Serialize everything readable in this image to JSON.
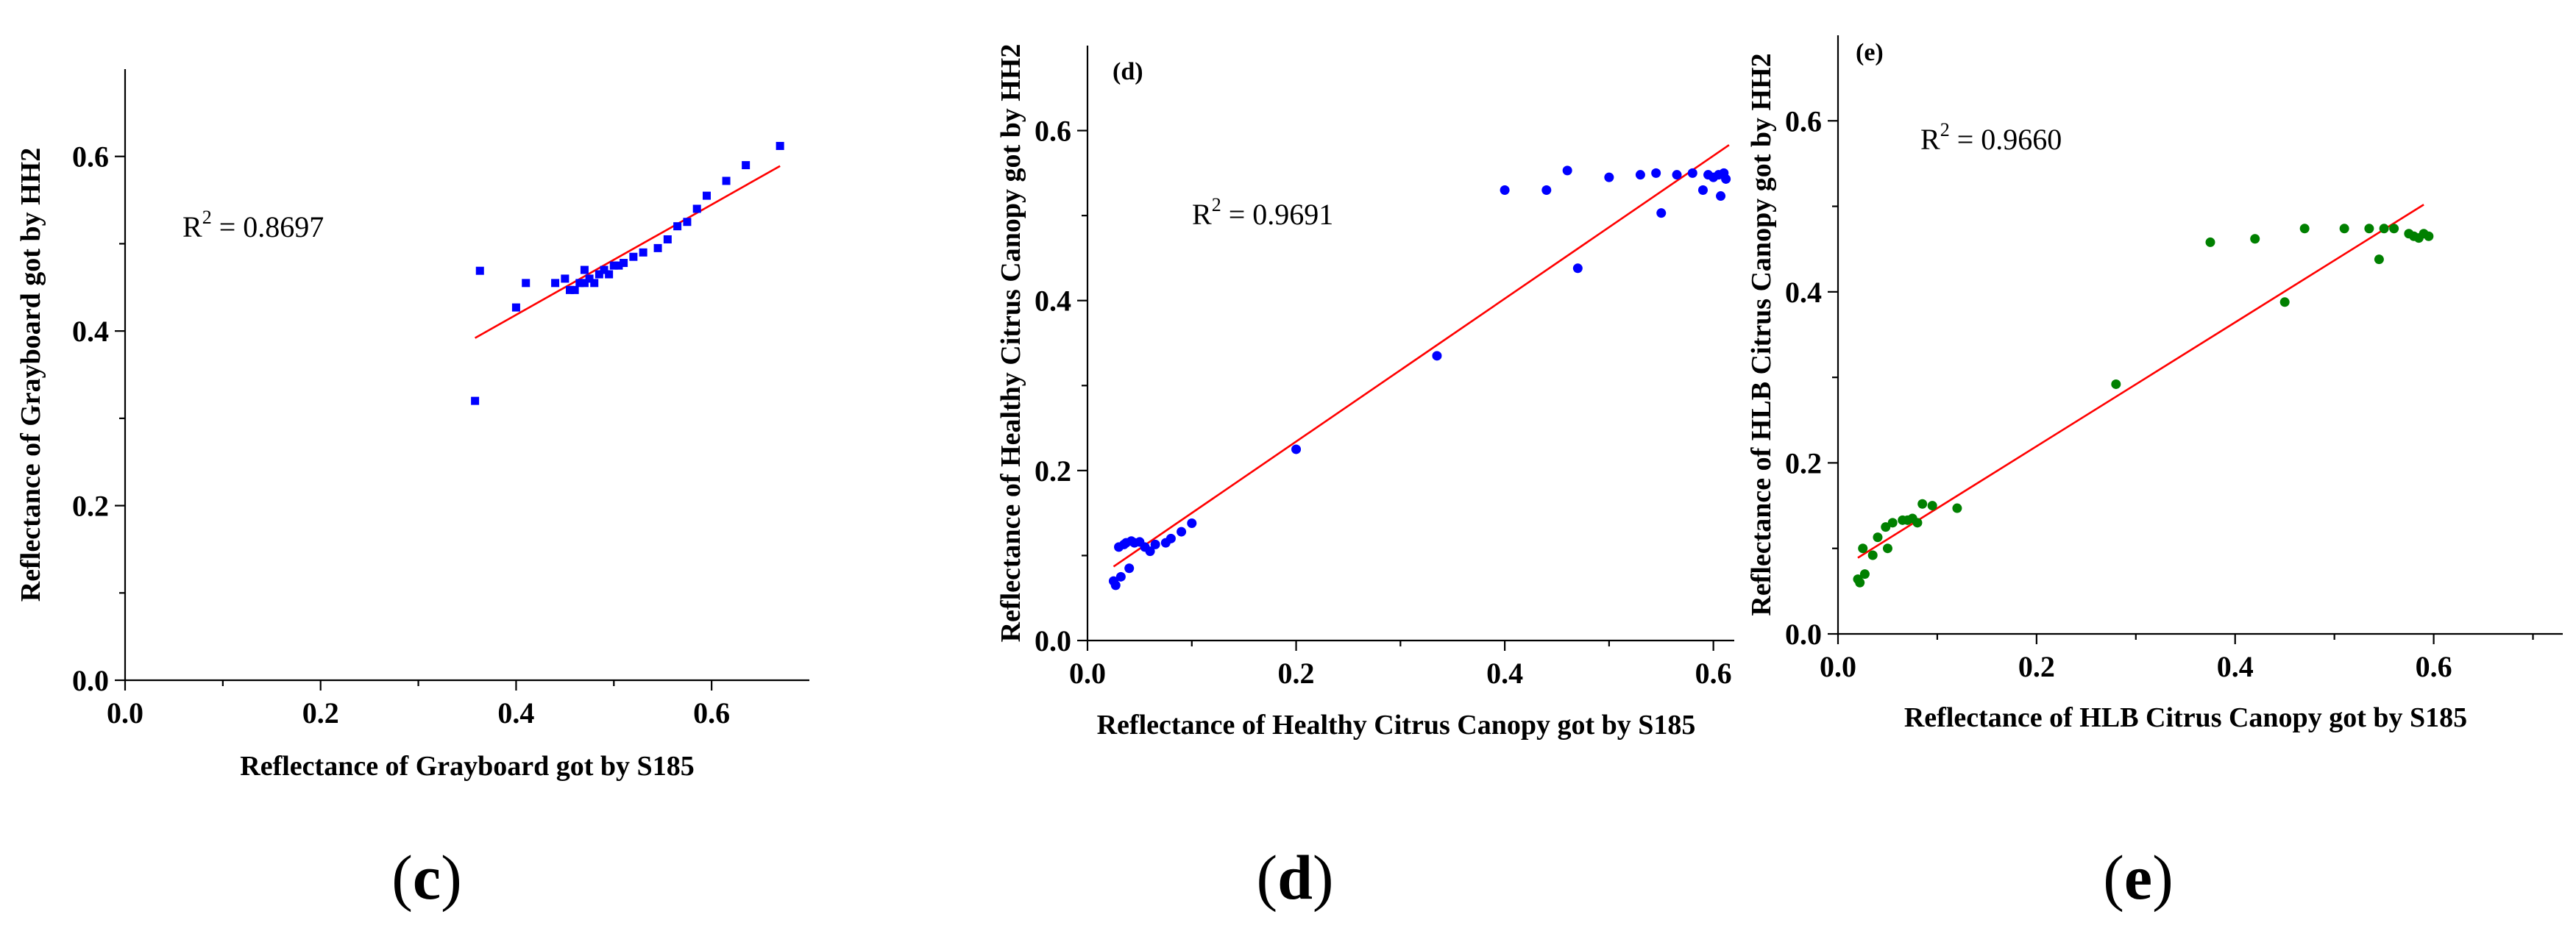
{
  "chart_data": [
    {
      "id": "c",
      "type": "scatter",
      "panel_label": "",
      "caption": "c",
      "title": "",
      "xlabel": "Reflectance of Grayboard got by S185",
      "ylabel": "Reflectance of Grayboard got by HH2",
      "xlim": [
        0.0,
        0.7
      ],
      "ylim": [
        0.0,
        0.7
      ],
      "xticks": [
        0.0,
        0.2,
        0.4,
        0.6
      ],
      "yticks": [
        0.0,
        0.2,
        0.4,
        0.6
      ],
      "xtick_labels": [
        "0.0",
        "0.2",
        "0.4",
        "0.6"
      ],
      "ytick_labels": [
        "0.0",
        "0.2",
        "0.4",
        "0.6"
      ],
      "r2_text": "R",
      "r2_sup": "2",
      "r2_value": " = 0.8697",
      "marker": "square",
      "color": "#0000ff",
      "fit_color": "#ff0000",
      "fit_line": {
        "x": [
          0.358,
          0.67
        ],
        "y": [
          0.392,
          0.589
        ]
      },
      "points": {
        "x": [
          0.358,
          0.363,
          0.4,
          0.41,
          0.44,
          0.45,
          0.455,
          0.46,
          0.465,
          0.47,
          0.47,
          0.475,
          0.48,
          0.485,
          0.49,
          0.495,
          0.5,
          0.505,
          0.51,
          0.52,
          0.53,
          0.545,
          0.555,
          0.565,
          0.575,
          0.585,
          0.595,
          0.615,
          0.635,
          0.67
        ],
        "y": [
          0.32,
          0.469,
          0.427,
          0.455,
          0.455,
          0.46,
          0.447,
          0.447,
          0.455,
          0.47,
          0.455,
          0.46,
          0.455,
          0.465,
          0.47,
          0.465,
          0.475,
          0.475,
          0.478,
          0.485,
          0.49,
          0.495,
          0.505,
          0.52,
          0.525,
          0.54,
          0.555,
          0.572,
          0.59,
          0.612
        ]
      }
    },
    {
      "id": "d",
      "type": "scatter",
      "panel_label": "(d)",
      "caption": "d",
      "title": "",
      "xlabel": "Reflectance of Healthy Citrus Canopy got by S185",
      "ylabel": "Reflectance of Healthy Citrus Canopy got by HH2",
      "xlim": [
        0.0,
        0.62
      ],
      "ylim": [
        0.0,
        0.7
      ],
      "xticks": [
        0.0,
        0.2,
        0.4,
        0.6
      ],
      "yticks": [
        0.0,
        0.2,
        0.4,
        0.6
      ],
      "xtick_labels": [
        "0.0",
        "0.2",
        "0.4",
        "0.6"
      ],
      "ytick_labels": [
        "0.0",
        "0.2",
        "0.4",
        "0.6"
      ],
      "r2_text": "R",
      "r2_sup": "2",
      "r2_value": " = 0.9691",
      "marker": "circle",
      "color": "#0000ff",
      "fit_color": "#ff0000",
      "fit_line": {
        "x": [
          0.025,
          0.615
        ],
        "y": [
          0.087,
          0.583
        ]
      },
      "points": {
        "x": [
          0.025,
          0.027,
          0.03,
          0.032,
          0.035,
          0.037,
          0.04,
          0.042,
          0.045,
          0.05,
          0.055,
          0.06,
          0.065,
          0.075,
          0.08,
          0.09,
          0.1,
          0.2,
          0.335,
          0.4,
          0.44,
          0.46,
          0.47,
          0.5,
          0.53,
          0.545,
          0.55,
          0.565,
          0.58,
          0.59,
          0.595,
          0.6,
          0.605,
          0.607,
          0.61,
          0.612
        ],
        "y": [
          0.07,
          0.065,
          0.11,
          0.075,
          0.113,
          0.115,
          0.085,
          0.117,
          0.115,
          0.116,
          0.11,
          0.105,
          0.113,
          0.115,
          0.12,
          0.128,
          0.138,
          0.225,
          0.335,
          0.53,
          0.53,
          0.553,
          0.438,
          0.545,
          0.548,
          0.55,
          0.503,
          0.548,
          0.55,
          0.53,
          0.548,
          0.545,
          0.548,
          0.523,
          0.55,
          0.543
        ]
      }
    },
    {
      "id": "e",
      "type": "scatter",
      "panel_label": "(e)",
      "caption": "e",
      "title": "",
      "xlabel": "Reflectance of HLB Citrus Canopy got by S185",
      "ylabel": "Reflectance of HLB Citrus Canopy got by HH2",
      "xlim": [
        0.0,
        0.73
      ],
      "ylim": [
        0.0,
        0.7
      ],
      "xticks": [
        0.0,
        0.2,
        0.4,
        0.6
      ],
      "yticks": [
        0.0,
        0.2,
        0.4,
        0.6
      ],
      "xtick_labels": [
        "0.0",
        "0.2",
        "0.4",
        "0.6"
      ],
      "ytick_labels": [
        "0.0",
        "0.2",
        "0.4",
        "0.6"
      ],
      "r2_text": "R",
      "r2_sup": "2",
      "r2_value": " = 0.9660",
      "marker": "circle",
      "color": "#008000",
      "fit_color": "#ff0000",
      "fit_line": {
        "x": [
          0.02,
          0.59
        ],
        "y": [
          0.089,
          0.502
        ]
      },
      "points": {
        "x": [
          0.02,
          0.022,
          0.025,
          0.027,
          0.035,
          0.04,
          0.048,
          0.05,
          0.055,
          0.065,
          0.07,
          0.075,
          0.08,
          0.085,
          0.095,
          0.12,
          0.28,
          0.375,
          0.42,
          0.45,
          0.47,
          0.51,
          0.535,
          0.545,
          0.55,
          0.56,
          0.575,
          0.58,
          0.585,
          0.59,
          0.595
        ],
        "y": [
          0.064,
          0.06,
          0.1,
          0.07,
          0.092,
          0.113,
          0.125,
          0.1,
          0.13,
          0.133,
          0.133,
          0.135,
          0.13,
          0.152,
          0.15,
          0.147,
          0.292,
          0.458,
          0.462,
          0.388,
          0.474,
          0.474,
          0.474,
          0.438,
          0.474,
          0.474,
          0.468,
          0.465,
          0.463,
          0.468,
          0.465
        ]
      }
    }
  ]
}
